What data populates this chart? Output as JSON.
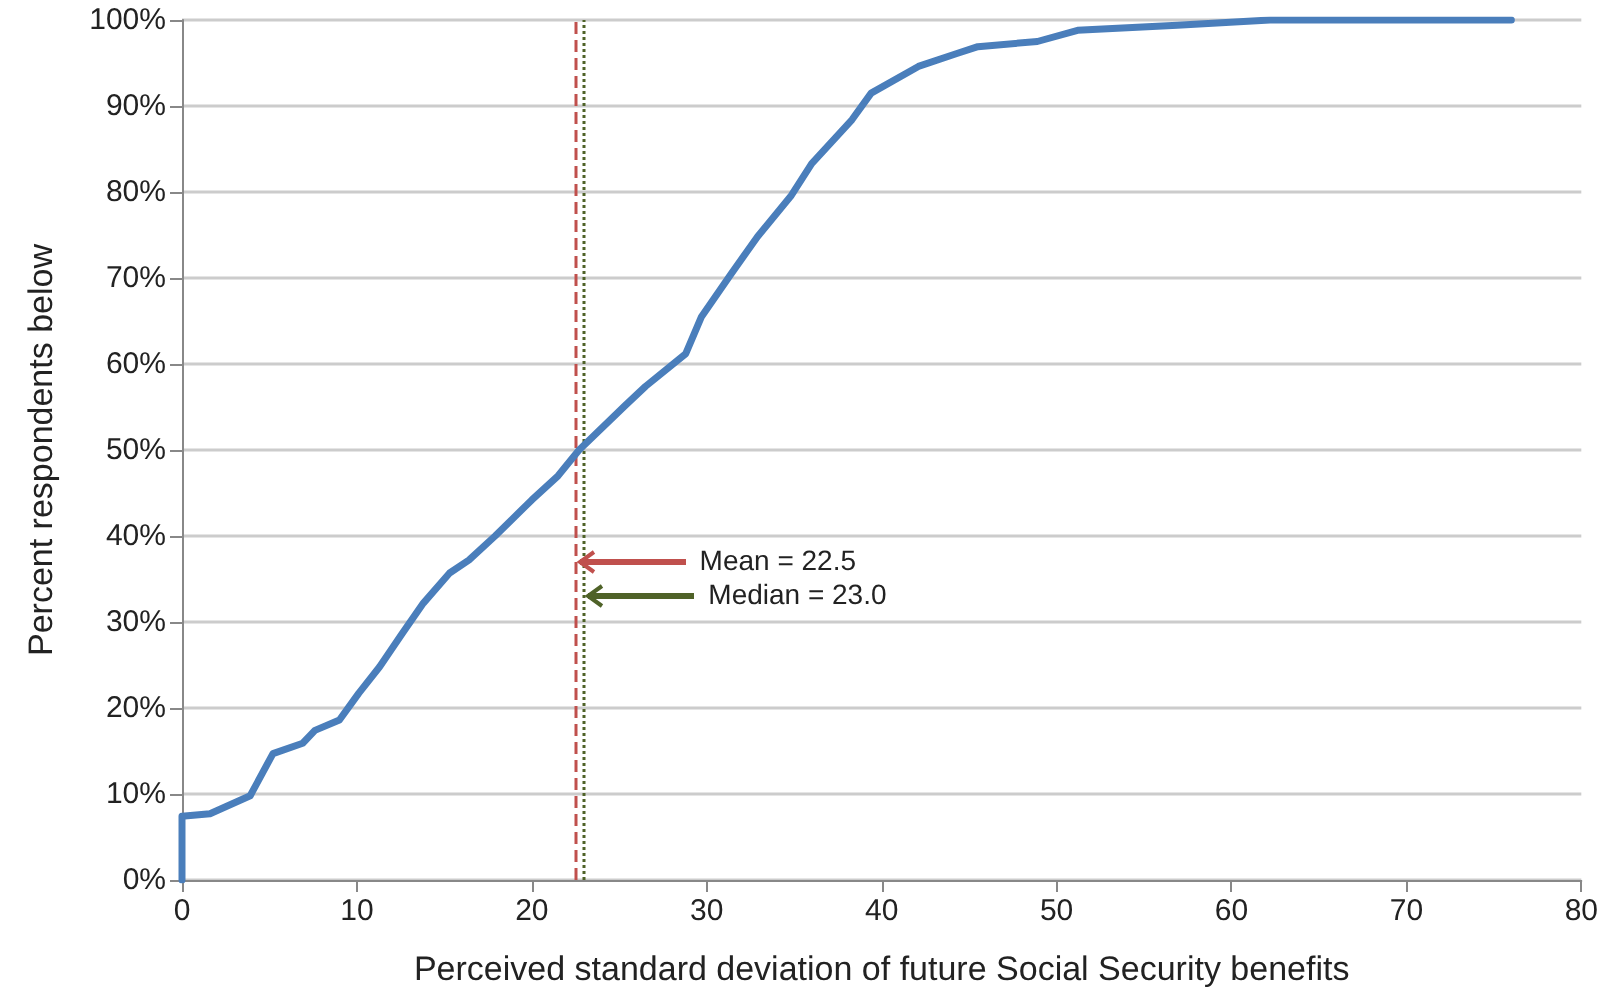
{
  "chart_data": {
    "type": "line",
    "xlabel": "Perceived standard deviation of future Social Security benefits",
    "ylabel": "Percent respondents below",
    "series": [
      {
        "color": "#4a7ebb",
        "x": [
          0,
          0,
          1.6,
          3.9,
          5.2,
          6.9,
          7.6,
          9.0,
          10.1,
          11.3,
          12.6,
          13.8,
          15.3,
          16.4,
          17.9,
          20.0,
          21.5,
          22.7,
          25.3,
          26.5,
          28.8,
          29.7,
          31.4,
          32.9,
          34.8,
          36.0,
          38.3,
          39.4,
          42.1,
          44.3,
          45.5,
          48.9,
          51.2,
          56.9,
          62.2,
          76.0
        ],
        "values": [
          0,
          7.4,
          7.7,
          9.8,
          14.7,
          15.9,
          17.4,
          18.6,
          21.7,
          24.8,
          28.7,
          32.2,
          35.7,
          37.2,
          40,
          44.2,
          47,
          50,
          55.1,
          57.4,
          61.2,
          65.5,
          70.5,
          74.8,
          79.5,
          83.3,
          88.4,
          91.5,
          94.6,
          96.1,
          96.9,
          97.5,
          98.8,
          99.4,
          100,
          100
        ]
      }
    ],
    "xlim": [
      0,
      80
    ],
    "xticks": [
      0,
      10,
      20,
      30,
      40,
      50,
      60,
      70,
      80
    ],
    "ylim": [
      0,
      100
    ],
    "yticks": [
      {
        "value": 0,
        "label": "0%"
      },
      {
        "value": 10,
        "label": "10%"
      },
      {
        "value": 20,
        "label": "20%"
      },
      {
        "value": 30,
        "label": "30%"
      },
      {
        "value": 40,
        "label": "40%"
      },
      {
        "value": 50,
        "label": "50%"
      },
      {
        "value": 60,
        "label": "60%"
      },
      {
        "value": 70,
        "label": "70%"
      },
      {
        "value": 80,
        "label": "80%"
      },
      {
        "value": 90,
        "label": "90%"
      },
      {
        "value": 100,
        "label": "100%"
      }
    ],
    "grid": "y",
    "marker": "none",
    "line_style": "solid",
    "ref_lines": [
      {
        "axis": "x",
        "value": 22.5,
        "color": "#c0504d",
        "line_style": "dashed"
      },
      {
        "axis": "x",
        "value": 23.0,
        "color": "#4f6228",
        "line_style": "dotted"
      }
    ],
    "annotations": [
      {
        "text": "Mean = 22.5",
        "x": 22.5,
        "y": 37
      },
      {
        "text": "Median = 23.0",
        "x": 23.0,
        "y": 33
      }
    ]
  }
}
